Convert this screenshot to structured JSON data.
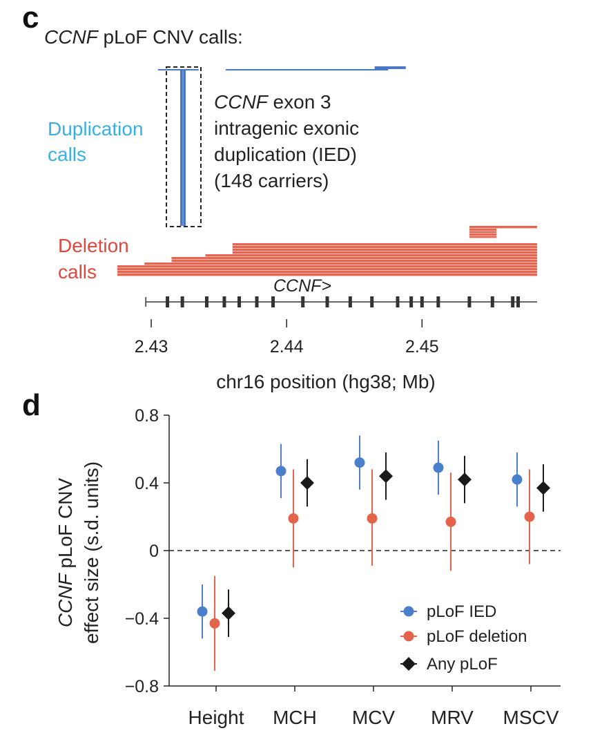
{
  "panel_c": {
    "letter": "c",
    "title_gene": "CCNF",
    "title_rest": " pLoF CNV calls:",
    "duplication_label": [
      "Duplication",
      "calls"
    ],
    "deletion_label": [
      "Deletion",
      "calls"
    ],
    "annotation_gene": "CCNF",
    "annotation_line1_rest": " exon 3",
    "annotation_lines": [
      "intragenic exonic",
      "duplication (IED)",
      "(148 carriers)"
    ],
    "gene_track_label": "CCNF>",
    "colors": {
      "duplication": "#4a78c4",
      "deletion": "#e8644f",
      "gene": "#333333"
    }
  },
  "panel_d": {
    "letter": "d"
  },
  "chart_data": [
    {
      "type": "track",
      "title": "CCNF pLoF CNV calls:",
      "xlabel": "chr16 position (hg38; Mb)",
      "xlim": [
        2.4275,
        2.4585
      ],
      "xticks": [
        2.43,
        2.44,
        2.45
      ],
      "xtick_labels": [
        "2.43",
        "2.44",
        "2.45"
      ],
      "gene": "CCNF",
      "gene_span": [
        2.4296,
        2.4585
      ],
      "exons": [
        2.4312,
        2.4323,
        2.4341,
        2.4354,
        2.4365,
        2.4378,
        2.439,
        2.4412,
        2.443,
        2.4447,
        2.4463,
        2.4482,
        2.4492,
        2.45,
        2.4512,
        2.4535,
        2.4552,
        2.4567,
        2.4571
      ],
      "highlight": {
        "label": "CCNF exon 3 intragenic exonic duplication (IED)",
        "carriers": 148
      },
      "duplications": [
        {
          "start": 2.4305,
          "end": 2.4335
        },
        {
          "start": 2.4355,
          "end": 2.4475
        },
        {
          "start": 2.4465,
          "end": 2.4488
        }
      ],
      "deletions": [
        {
          "start": 2.4535,
          "end": 2.4585
        },
        {
          "start": 2.4535,
          "end": 2.4555
        },
        {
          "start": 2.436,
          "end": 2.4585
        },
        {
          "start": 2.434,
          "end": 2.4585
        },
        {
          "start": 2.4315,
          "end": 2.4585
        },
        {
          "start": 2.4295,
          "end": 2.4585
        },
        {
          "start": 2.4275,
          "end": 2.4585
        }
      ]
    },
    {
      "type": "scatter",
      "subtype": "point-range",
      "ylabel_gene": "CCNF",
      "ylabel_rest": " pLoF CNV",
      "ylabel_line2": "effect size (s.d. units)",
      "ylim": [
        -0.8,
        0.8
      ],
      "yticks": [
        0.8,
        0.4,
        0,
        -0.4,
        -0.8
      ],
      "ytick_labels": [
        "0.8",
        "0.4",
        "0",
        "−0.4",
        "−0.8"
      ],
      "categories": [
        "Height",
        "MCH",
        "MCV",
        "MRV",
        "MSCV"
      ],
      "reference_line": 0,
      "series": [
        {
          "name": "pLoF IED",
          "color": "#4a7fcc",
          "marker": "circle",
          "values": [
            -0.36,
            0.47,
            0.52,
            0.49,
            0.42
          ],
          "lower": [
            -0.52,
            0.31,
            0.36,
            0.33,
            0.26
          ],
          "upper": [
            -0.2,
            0.63,
            0.68,
            0.65,
            0.58
          ]
        },
        {
          "name": "pLoF deletion",
          "color": "#e4634b",
          "marker": "circle",
          "values": [
            -0.43,
            0.19,
            0.19,
            0.17,
            0.2
          ],
          "lower": [
            -0.71,
            -0.1,
            -0.09,
            -0.12,
            -0.08
          ],
          "upper": [
            -0.15,
            0.48,
            0.48,
            0.46,
            0.48
          ]
        },
        {
          "name": "Any pLoF",
          "color": "#1a1a1a",
          "marker": "diamond",
          "values": [
            -0.37,
            0.4,
            0.44,
            0.42,
            0.37
          ],
          "lower": [
            -0.51,
            0.26,
            0.3,
            0.28,
            0.23
          ],
          "upper": [
            -0.23,
            0.54,
            0.58,
            0.56,
            0.51
          ]
        }
      ],
      "legend_position": "lower-right"
    }
  ]
}
